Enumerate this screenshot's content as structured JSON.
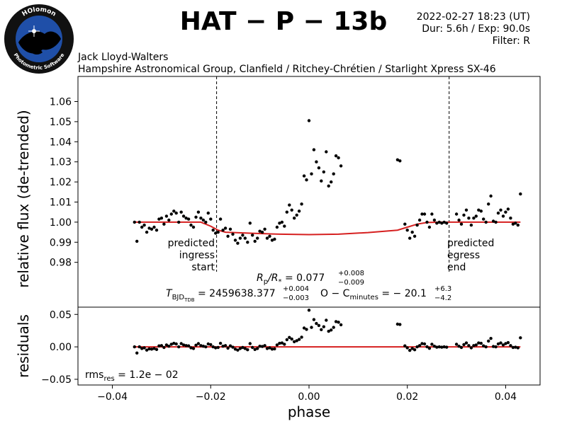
{
  "header": {
    "title": "HAT − P − 13b",
    "date_line": "2022-02-27 18:23 (UT)",
    "duration_line": "Dur: 5.6h / Exp: 90.0s",
    "filter_line": "Filter: R",
    "observer": "Jack Lloyd-Walters",
    "observatory": "Hampshire Astronomical Group, Clanfield / Ritchey-Chrétien / Starlight Xpress SX-46"
  },
  "logo": {
    "top_text": "HOlomon",
    "bottom_text": "Photometric Software",
    "colors": {
      "ring": "#1a1a1a",
      "disk": "#1f4fa8",
      "land": "#000000"
    }
  },
  "colors": {
    "points": "#000000",
    "model": "#d62020",
    "axes": "#000000"
  },
  "annotations": {
    "ingress": [
      "predicted",
      "ingress",
      "start"
    ],
    "egress": [
      "predicted",
      "egress",
      "end"
    ],
    "ingress_phase": -0.0188,
    "egress_phase": 0.0285,
    "rp_rs": {
      "lhs": "R",
      "lhs_sub": "p",
      "div": "/R",
      "div_sub": "*",
      "eq": " = 0.077",
      "plus": "+0.008",
      "minus": "−0.009"
    },
    "tbjd": {
      "lhs": "T",
      "lhs_sub": "BJD",
      "lhs_subsub": "TDB",
      "eq": " = 2459638.377",
      "plus": "+0.004",
      "minus": "−0.003",
      "oc_lhs": "O − C",
      "oc_sub": "minutes",
      "oc_eq": " = − 20.1",
      "oc_plus": "+6.3",
      "oc_minus": "−4.2"
    },
    "rms": {
      "lhs": "rms",
      "sub": "res",
      "eq": " = 1.2e − 02"
    }
  },
  "chart_data": [
    {
      "type": "scatter",
      "name_role": "light curve",
      "ylabel": "relative flux (de-trended)",
      "xlim": [
        -0.047,
        0.047
      ],
      "ylim": [
        0.9577,
        1.0725
      ],
      "yticks": [
        0.98,
        0.99,
        1.0,
        1.01,
        1.02,
        1.03,
        1.04,
        1.05,
        1.06
      ],
      "ytick_labels": [
        "0.98",
        "0.99",
        "1.00",
        "1.01",
        "1.02",
        "1.03",
        "1.04",
        "1.05",
        "1.06"
      ],
      "grid": false,
      "points": [
        [
          -0.0355,
          1.0
        ],
        [
          -0.035,
          0.9905
        ],
        [
          -0.0345,
          1.0
        ],
        [
          -0.034,
          0.9975
        ],
        [
          -0.0335,
          0.9985
        ],
        [
          -0.033,
          0.995
        ],
        [
          -0.0325,
          0.997
        ],
        [
          -0.032,
          0.9965
        ],
        [
          -0.0315,
          0.9975
        ],
        [
          -0.031,
          0.996
        ],
        [
          -0.0305,
          1.0015
        ],
        [
          -0.03,
          1.002
        ],
        [
          -0.0295,
          0.999
        ],
        [
          -0.029,
          1.003
        ],
        [
          -0.0285,
          1.001
        ],
        [
          -0.028,
          1.004
        ],
        [
          -0.0275,
          1.0055
        ],
        [
          -0.027,
          1.0045
        ],
        [
          -0.0265,
          1.0
        ],
        [
          -0.026,
          1.005
        ],
        [
          -0.0255,
          1.003
        ],
        [
          -0.025,
          1.002
        ],
        [
          -0.0245,
          1.0015
        ],
        [
          -0.024,
          0.9985
        ],
        [
          -0.0235,
          0.9975
        ],
        [
          -0.023,
          1.0025
        ],
        [
          -0.0225,
          1.005
        ],
        [
          -0.022,
          1.002
        ],
        [
          -0.0215,
          1.001
        ],
        [
          -0.021,
          1.0
        ],
        [
          -0.0205,
          1.0045
        ],
        [
          -0.02,
          1.0015
        ],
        [
          -0.0195,
          0.996
        ],
        [
          -0.019,
          0.9945
        ],
        [
          -0.0185,
          0.995
        ],
        [
          -0.018,
          1.0015
        ],
        [
          -0.0175,
          0.996
        ],
        [
          -0.017,
          0.997
        ],
        [
          -0.0165,
          0.993
        ],
        [
          -0.016,
          0.9965
        ],
        [
          -0.0155,
          0.994
        ],
        [
          -0.015,
          0.991
        ],
        [
          -0.0145,
          0.9895
        ],
        [
          -0.014,
          0.992
        ],
        [
          -0.0135,
          0.9935
        ],
        [
          -0.013,
          0.992
        ],
        [
          -0.0125,
          0.99
        ],
        [
          -0.012,
          0.9995
        ],
        [
          -0.0115,
          0.9935
        ],
        [
          -0.011,
          0.9905
        ],
        [
          -0.0105,
          0.992
        ],
        [
          -0.01,
          0.9955
        ],
        [
          -0.0095,
          0.995
        ],
        [
          -0.009,
          0.9965
        ],
        [
          -0.0085,
          0.992
        ],
        [
          -0.008,
          0.993
        ],
        [
          -0.0075,
          0.991
        ],
        [
          -0.007,
          0.9915
        ],
        [
          -0.0065,
          0.9975
        ],
        [
          -0.006,
          0.9995
        ],
        [
          -0.0055,
          1.0
        ],
        [
          -0.005,
          0.998
        ],
        [
          -0.0045,
          1.005
        ],
        [
          -0.004,
          1.0085
        ],
        [
          -0.0035,
          1.006
        ],
        [
          -0.003,
          1.002
        ],
        [
          -0.0025,
          1.0035
        ],
        [
          -0.002,
          1.0055
        ],
        [
          -0.0015,
          1.009
        ],
        [
          -0.001,
          1.023
        ],
        [
          -0.0005,
          1.021
        ],
        [
          0.0,
          1.0505
        ],
        [
          0.0005,
          1.024
        ],
        [
          0.001,
          1.036
        ],
        [
          0.0015,
          1.03
        ],
        [
          0.002,
          1.027
        ],
        [
          0.0025,
          1.0205
        ],
        [
          0.003,
          1.025
        ],
        [
          0.0035,
          1.035
        ],
        [
          0.004,
          1.018
        ],
        [
          0.0045,
          1.02
        ],
        [
          0.005,
          1.024
        ],
        [
          0.0055,
          1.033
        ],
        [
          0.006,
          1.032
        ],
        [
          0.0065,
          1.028
        ],
        [
          0.018,
          1.031
        ],
        [
          0.0185,
          1.0305
        ],
        [
          0.0195,
          0.999
        ],
        [
          0.02,
          0.996
        ],
        [
          0.0205,
          0.992
        ],
        [
          0.021,
          0.995
        ],
        [
          0.0215,
          0.993
        ],
        [
          0.022,
          0.9985
        ],
        [
          0.0225,
          1.001
        ],
        [
          0.023,
          1.004
        ],
        [
          0.0235,
          1.004
        ],
        [
          0.024,
          1.0
        ],
        [
          0.0245,
          0.9975
        ],
        [
          0.025,
          1.004
        ],
        [
          0.0255,
          1.001
        ],
        [
          0.026,
          0.9995
        ],
        [
          0.0265,
          1.0
        ],
        [
          0.027,
          0.9995
        ],
        [
          0.0275,
          1.0
        ],
        [
          0.028,
          0.9995
        ],
        [
          0.03,
          1.004
        ],
        [
          0.0305,
          1.001
        ],
        [
          0.031,
          0.999
        ],
        [
          0.0315,
          1.0035
        ],
        [
          0.032,
          1.006
        ],
        [
          0.0325,
          1.002
        ],
        [
          0.033,
          0.9985
        ],
        [
          0.0335,
          1.002
        ],
        [
          0.034,
          1.003
        ],
        [
          0.0345,
          1.006
        ],
        [
          0.035,
          1.0055
        ],
        [
          0.0355,
          1.0015
        ],
        [
          0.036,
          1.0
        ],
        [
          0.0365,
          1.009
        ],
        [
          0.037,
          1.013
        ],
        [
          0.0375,
          1.0005
        ],
        [
          0.038,
          1.0
        ],
        [
          0.0385,
          1.0045
        ],
        [
          0.039,
          1.006
        ],
        [
          0.0395,
          1.003
        ],
        [
          0.04,
          1.005
        ],
        [
          0.0405,
          1.0065
        ],
        [
          0.041,
          1.002
        ],
        [
          0.0415,
          0.999
        ],
        [
          0.042,
          0.9995
        ],
        [
          0.0425,
          0.9985
        ],
        [
          0.043,
          1.014
        ]
      ],
      "model": [
        [
          -0.0355,
          1.0
        ],
        [
          -0.022,
          1.0
        ],
        [
          -0.02,
          0.998
        ],
        [
          -0.0185,
          0.996
        ],
        [
          -0.017,
          0.995
        ],
        [
          -0.012,
          0.9945
        ],
        [
          -0.006,
          0.994
        ],
        [
          0.0,
          0.9938
        ],
        [
          0.006,
          0.994
        ],
        [
          0.012,
          0.9948
        ],
        [
          0.018,
          0.996
        ],
        [
          0.02,
          0.9975
        ],
        [
          0.022,
          0.999
        ],
        [
          0.024,
          0.9998
        ],
        [
          0.027,
          1.0
        ],
        [
          0.043,
          1.0
        ]
      ]
    },
    {
      "type": "scatter",
      "name_role": "residuals",
      "xlabel": "phase",
      "ylabel": "residuals",
      "xlim": [
        -0.047,
        0.047
      ],
      "ylim": [
        -0.0588,
        0.0612
      ],
      "xticks": [
        -0.04,
        -0.02,
        0.0,
        0.02,
        0.04
      ],
      "xtick_labels": [
        "−0.04",
        "−0.02",
        "0.00",
        "0.02",
        "0.04"
      ],
      "yticks": [
        -0.05,
        0.0,
        0.05
      ],
      "ytick_labels": [
        "−0.05",
        "0.00",
        "0.05"
      ],
      "grid": false,
      "points": [
        [
          -0.0355,
          0.0
        ],
        [
          -0.035,
          -0.0095
        ],
        [
          -0.0345,
          0.0
        ],
        [
          -0.034,
          -0.0025
        ],
        [
          -0.0335,
          -0.0015
        ],
        [
          -0.033,
          -0.005
        ],
        [
          -0.0325,
          -0.003
        ],
        [
          -0.032,
          -0.0035
        ],
        [
          -0.0315,
          -0.0025
        ],
        [
          -0.031,
          -0.004
        ],
        [
          -0.0305,
          0.0015
        ],
        [
          -0.03,
          0.002
        ],
        [
          -0.0295,
          -0.001
        ],
        [
          -0.029,
          0.003
        ],
        [
          -0.0285,
          0.001
        ],
        [
          -0.028,
          0.004
        ],
        [
          -0.0275,
          0.0055
        ],
        [
          -0.027,
          0.0045
        ],
        [
          -0.0265,
          0.0
        ],
        [
          -0.026,
          0.005
        ],
        [
          -0.0255,
          0.003
        ],
        [
          -0.025,
          0.002
        ],
        [
          -0.0245,
          0.0015
        ],
        [
          -0.024,
          -0.0015
        ],
        [
          -0.0235,
          -0.0025
        ],
        [
          -0.023,
          0.0025
        ],
        [
          -0.0225,
          0.005
        ],
        [
          -0.022,
          0.002
        ],
        [
          -0.0215,
          0.001
        ],
        [
          -0.021,
          0.0
        ],
        [
          -0.0205,
          0.0045
        ],
        [
          -0.02,
          0.0035
        ],
        [
          -0.0195,
          0.0
        ],
        [
          -0.019,
          -0.0015
        ],
        [
          -0.0185,
          -0.001
        ],
        [
          -0.018,
          0.0055
        ],
        [
          -0.0175,
          0.001
        ],
        [
          -0.017,
          0.002
        ],
        [
          -0.0165,
          -0.002
        ],
        [
          -0.016,
          0.0015
        ],
        [
          -0.0155,
          -0.0005
        ],
        [
          -0.015,
          -0.0035
        ],
        [
          -0.0145,
          -0.005
        ],
        [
          -0.014,
          -0.0025
        ],
        [
          -0.0135,
          -0.001
        ],
        [
          -0.013,
          -0.0025
        ],
        [
          -0.0125,
          -0.0045
        ],
        [
          -0.012,
          0.005
        ],
        [
          -0.0115,
          -0.001
        ],
        [
          -0.011,
          -0.004
        ],
        [
          -0.0105,
          -0.0025
        ],
        [
          -0.01,
          0.001
        ],
        [
          -0.0095,
          0.0005
        ],
        [
          -0.009,
          0.002
        ],
        [
          -0.0085,
          -0.0025
        ],
        [
          -0.008,
          -0.0015
        ],
        [
          -0.0075,
          -0.0035
        ],
        [
          -0.007,
          -0.003
        ],
        [
          -0.0065,
          0.003
        ],
        [
          -0.006,
          0.0055
        ],
        [
          -0.0055,
          0.006
        ],
        [
          -0.005,
          0.004
        ],
        [
          -0.0045,
          0.011
        ],
        [
          -0.004,
          0.0145
        ],
        [
          -0.0035,
          0.012
        ],
        [
          -0.003,
          0.008
        ],
        [
          -0.0025,
          0.0095
        ],
        [
          -0.002,
          0.0115
        ],
        [
          -0.0015,
          0.015
        ],
        [
          -0.001,
          0.029
        ],
        [
          -0.0005,
          0.027
        ],
        [
          0.0,
          0.0565
        ],
        [
          0.0005,
          0.03
        ],
        [
          0.001,
          0.042
        ],
        [
          0.0015,
          0.036
        ],
        [
          0.002,
          0.033
        ],
        [
          0.0025,
          0.0265
        ],
        [
          0.003,
          0.031
        ],
        [
          0.0035,
          0.041
        ],
        [
          0.004,
          0.024
        ],
        [
          0.0045,
          0.026
        ],
        [
          0.005,
          0.03
        ],
        [
          0.0055,
          0.039
        ],
        [
          0.006,
          0.038
        ],
        [
          0.0065,
          0.034
        ],
        [
          0.018,
          0.035
        ],
        [
          0.0185,
          0.0345
        ],
        [
          0.0195,
          0.0015
        ],
        [
          0.02,
          -0.0015
        ],
        [
          0.0205,
          -0.0055
        ],
        [
          0.021,
          -0.0025
        ],
        [
          0.0215,
          -0.0045
        ],
        [
          0.022,
          0.0
        ],
        [
          0.0225,
          0.002
        ],
        [
          0.023,
          0.005
        ],
        [
          0.0235,
          0.0045
        ],
        [
          0.024,
          0.0002
        ],
        [
          0.0245,
          -0.0023
        ],
        [
          0.025,
          0.004
        ],
        [
          0.0255,
          0.001
        ],
        [
          0.026,
          -0.0005
        ],
        [
          0.0265,
          0.0
        ],
        [
          0.027,
          -0.0005
        ],
        [
          0.0275,
          0.0
        ],
        [
          0.028,
          -0.0005
        ],
        [
          0.03,
          0.004
        ],
        [
          0.0305,
          0.001
        ],
        [
          0.031,
          -0.001
        ],
        [
          0.0315,
          0.0035
        ],
        [
          0.032,
          0.006
        ],
        [
          0.0325,
          0.002
        ],
        [
          0.033,
          -0.0015
        ],
        [
          0.0335,
          0.002
        ],
        [
          0.034,
          0.003
        ],
        [
          0.0345,
          0.006
        ],
        [
          0.035,
          0.0055
        ],
        [
          0.0355,
          0.0015
        ],
        [
          0.036,
          0.0
        ],
        [
          0.0365,
          0.009
        ],
        [
          0.037,
          0.013
        ],
        [
          0.0375,
          0.0005
        ],
        [
          0.038,
          0.0
        ],
        [
          0.0385,
          0.0045
        ],
        [
          0.039,
          0.006
        ],
        [
          0.0395,
          0.003
        ],
        [
          0.04,
          0.005
        ],
        [
          0.0405,
          0.0065
        ],
        [
          0.041,
          0.002
        ],
        [
          0.0415,
          -0.001
        ],
        [
          0.042,
          -0.0005
        ],
        [
          0.0425,
          -0.0015
        ],
        [
          0.043,
          0.014
        ]
      ],
      "model": [
        [
          -0.0355,
          0.0
        ],
        [
          0.043,
          0.0
        ]
      ]
    }
  ]
}
